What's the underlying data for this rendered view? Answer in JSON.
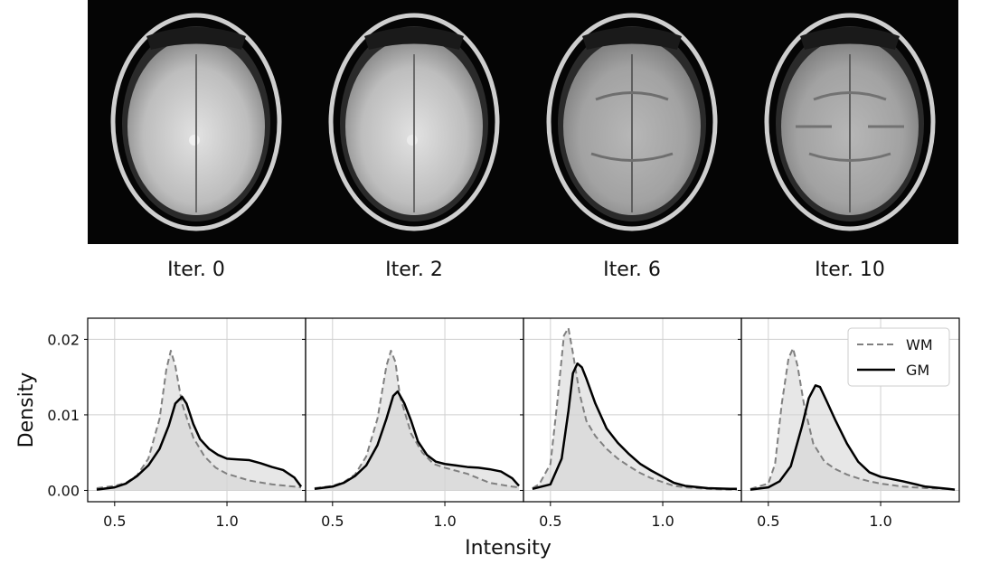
{
  "iteration_labels": [
    "Iter. 0",
    "Iter. 2",
    "Iter. 6",
    "Iter. 10"
  ],
  "chart_data": {
    "type": "area",
    "ylabel": "Density",
    "xlabel": "Intensity",
    "xlim": [
      0.38,
      1.35
    ],
    "ylim": [
      -0.0015,
      0.0228
    ],
    "yticks": [
      0.0,
      0.01,
      0.02
    ],
    "ytick_labels": [
      "0.00",
      "0.01",
      "0.02"
    ],
    "xticks": [
      0.5,
      1.0
    ],
    "xtick_labels": [
      "0.5",
      "1.0"
    ],
    "grid": true,
    "legend": {
      "placement": "top-right",
      "entries": [
        "WM",
        "GM"
      ]
    },
    "colors": {
      "wm_line": "#808080",
      "gm_line": "#000000",
      "fill": "#d3d3d3"
    },
    "panels": [
      {
        "series": [
          {
            "name": "WM",
            "style": "dashed",
            "x": [
              0.42,
              0.5,
              0.55,
              0.6,
              0.65,
              0.7,
              0.73,
              0.75,
              0.77,
              0.8,
              0.85,
              0.9,
              0.95,
              1.0,
              1.1,
              1.2,
              1.3,
              1.33
            ],
            "y": [
              0.0003,
              0.0006,
              0.001,
              0.002,
              0.0042,
              0.0095,
              0.016,
              0.0185,
              0.0165,
              0.0115,
              0.007,
              0.0045,
              0.003,
              0.0022,
              0.0013,
              0.0008,
              0.0005,
              0.0004
            ]
          },
          {
            "name": "GM",
            "style": "solid",
            "x": [
              0.42,
              0.5,
              0.55,
              0.6,
              0.65,
              0.7,
              0.74,
              0.77,
              0.8,
              0.82,
              0.85,
              0.88,
              0.92,
              0.96,
              1.0,
              1.05,
              1.1,
              1.15,
              1.2,
              1.25,
              1.3,
              1.33
            ],
            "y": [
              0.0001,
              0.0004,
              0.0009,
              0.0019,
              0.0033,
              0.0055,
              0.0085,
              0.0115,
              0.0124,
              0.0115,
              0.0088,
              0.0068,
              0.0055,
              0.0047,
              0.0042,
              0.0041,
              0.004,
              0.0036,
              0.0031,
              0.0027,
              0.0017,
              0.0005
            ]
          }
        ]
      },
      {
        "series": [
          {
            "name": "WM",
            "style": "dashed",
            "x": [
              0.42,
              0.5,
              0.55,
              0.6,
              0.65,
              0.7,
              0.74,
              0.76,
              0.78,
              0.8,
              0.85,
              0.9,
              0.95,
              1.0,
              1.1,
              1.2,
              1.3,
              1.33
            ],
            "y": [
              0.0003,
              0.0006,
              0.0011,
              0.0021,
              0.0045,
              0.0095,
              0.0165,
              0.0185,
              0.017,
              0.0125,
              0.0075,
              0.005,
              0.0035,
              0.003,
              0.0022,
              0.001,
              0.0005,
              0.0004
            ]
          },
          {
            "name": "GM",
            "style": "solid",
            "x": [
              0.42,
              0.5,
              0.55,
              0.6,
              0.65,
              0.7,
              0.74,
              0.77,
              0.79,
              0.82,
              0.85,
              0.88,
              0.92,
              0.96,
              1.0,
              1.05,
              1.1,
              1.15,
              1.2,
              1.25,
              1.3,
              1.33
            ],
            "y": [
              0.0002,
              0.0005,
              0.001,
              0.0019,
              0.0033,
              0.006,
              0.0095,
              0.0125,
              0.0131,
              0.0115,
              0.0092,
              0.0065,
              0.0047,
              0.0038,
              0.0035,
              0.0033,
              0.0031,
              0.003,
              0.0028,
              0.0025,
              0.0016,
              0.0006
            ]
          }
        ]
      },
      {
        "series": [
          {
            "name": "WM",
            "style": "dashed",
            "x": [
              0.42,
              0.45,
              0.5,
              0.53,
              0.56,
              0.58,
              0.6,
              0.63,
              0.66,
              0.7,
              0.75,
              0.8,
              0.85,
              0.9,
              0.95,
              1.0,
              1.05,
              1.1,
              1.2,
              1.3,
              1.33
            ],
            "y": [
              0.0003,
              0.0008,
              0.0035,
              0.0115,
              0.0205,
              0.0215,
              0.0182,
              0.0128,
              0.0092,
              0.0072,
              0.0055,
              0.0042,
              0.0032,
              0.0023,
              0.0016,
              0.0011,
              0.0006,
              0.0004,
              0.0002,
              0.0001,
              0.0001
            ]
          },
          {
            "name": "GM",
            "style": "solid",
            "x": [
              0.42,
              0.5,
              0.55,
              0.58,
              0.6,
              0.62,
              0.64,
              0.66,
              0.7,
              0.75,
              0.8,
              0.85,
              0.9,
              0.95,
              1.0,
              1.05,
              1.1,
              1.2,
              1.3,
              1.33
            ],
            "y": [
              0.0002,
              0.0008,
              0.0042,
              0.0105,
              0.0155,
              0.0168,
              0.0163,
              0.0148,
              0.0115,
              0.0082,
              0.0063,
              0.0048,
              0.0035,
              0.0026,
              0.0018,
              0.001,
              0.0006,
              0.0003,
              0.0002,
              0.0002
            ]
          }
        ]
      },
      {
        "series": [
          {
            "name": "WM",
            "style": "dashed",
            "x": [
              0.42,
              0.5,
              0.53,
              0.56,
              0.59,
              0.61,
              0.63,
              0.66,
              0.7,
              0.75,
              0.8,
              0.85,
              0.9,
              0.95,
              1.0,
              1.1,
              1.2,
              1.3,
              1.33
            ],
            "y": [
              0.0002,
              0.0009,
              0.0035,
              0.0115,
              0.0175,
              0.0188,
              0.0165,
              0.0112,
              0.0062,
              0.0038,
              0.0028,
              0.0021,
              0.0016,
              0.0012,
              0.0009,
              0.0005,
              0.0003,
              0.0002,
              0.0001
            ]
          },
          {
            "name": "GM",
            "style": "solid",
            "x": [
              0.42,
              0.5,
              0.55,
              0.6,
              0.65,
              0.68,
              0.71,
              0.73,
              0.76,
              0.8,
              0.85,
              0.9,
              0.95,
              1.0,
              1.05,
              1.1,
              1.2,
              1.3,
              1.33
            ],
            "y": [
              0.0001,
              0.0004,
              0.0012,
              0.0032,
              0.0085,
              0.0122,
              0.0139,
              0.0137,
              0.0118,
              0.0092,
              0.0062,
              0.0038,
              0.0024,
              0.0018,
              0.0015,
              0.0012,
              0.0005,
              0.0002,
              0.0001
            ]
          }
        ]
      }
    ]
  }
}
